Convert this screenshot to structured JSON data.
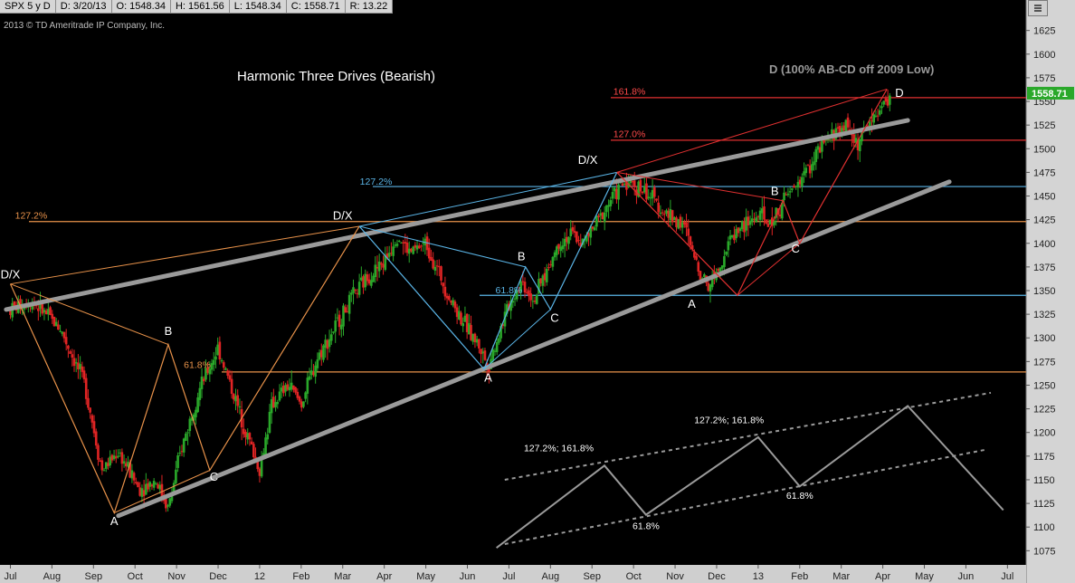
{
  "info_bar": {
    "symbol": "SPX 5 y D",
    "date": "D: 3/20/13",
    "open": "O: 1548.34",
    "high": "H: 1561.56",
    "low": "L: 1548.34",
    "close": "C: 1558.71",
    "range": "R: 13.22"
  },
  "copyright": "2013 © TD Ameritrade IP Company, Inc.",
  "chart_data": {
    "type": "line",
    "title": "Harmonic Three Drives (Bearish)",
    "subtitle": "D (100% AB-CD off 2009 Low)",
    "ylim": [
      1060,
      1640
    ],
    "y_ticks": [
      1075,
      1100,
      1125,
      1150,
      1175,
      1200,
      1225,
      1250,
      1275,
      1300,
      1325,
      1350,
      1375,
      1400,
      1425,
      1450,
      1475,
      1500,
      1525,
      1550,
      1575,
      1600,
      1625
    ],
    "x_ticks": [
      "Jul",
      "Aug",
      "Sep",
      "Oct",
      "Nov",
      "Dec",
      "12",
      "Feb",
      "Mar",
      "Apr",
      "May",
      "Jun",
      "Jul",
      "Aug",
      "Sep",
      "Oct",
      "Nov",
      "Dec",
      "13",
      "Feb",
      "Mar",
      "Apr",
      "May",
      "Jun",
      "Jul"
    ],
    "last_price": "1558.71",
    "price_anchors": [
      [
        0,
        1330
      ],
      [
        0.5,
        1340
      ],
      [
        1.2,
        1310
      ],
      [
        1.8,
        1250
      ],
      [
        2.2,
        1160
      ],
      [
        2.6,
        1180
      ],
      [
        3.1,
        1140
      ],
      [
        3.5,
        1150
      ],
      [
        3.8,
        1120
      ],
      [
        4.1,
        1180
      ],
      [
        4.5,
        1240
      ],
      [
        5.0,
        1290
      ],
      [
        5.3,
        1250
      ],
      [
        5.6,
        1210
      ],
      [
        6.0,
        1160
      ],
      [
        6.3,
        1230
      ],
      [
        6.7,
        1250
      ],
      [
        7.0,
        1230
      ],
      [
        7.4,
        1280
      ],
      [
        7.8,
        1310
      ],
      [
        8.2,
        1340
      ],
      [
        8.6,
        1365
      ],
      [
        9.0,
        1380
      ],
      [
        9.3,
        1410
      ],
      [
        9.6,
        1390
      ],
      [
        10.0,
        1400
      ],
      [
        10.3,
        1370
      ],
      [
        10.6,
        1340
      ],
      [
        11.0,
        1310
      ],
      [
        11.3,
        1290
      ],
      [
        11.5,
        1270
      ],
      [
        11.8,
        1310
      ],
      [
        12.0,
        1335
      ],
      [
        12.3,
        1360
      ],
      [
        12.6,
        1340
      ],
      [
        12.9,
        1370
      ],
      [
        13.2,
        1400
      ],
      [
        13.5,
        1410
      ],
      [
        13.8,
        1400
      ],
      [
        14.1,
        1420
      ],
      [
        14.5,
        1450
      ],
      [
        14.8,
        1465
      ],
      [
        15.1,
        1460
      ],
      [
        15.4,
        1450
      ],
      [
        15.8,
        1430
      ],
      [
        16.2,
        1420
      ],
      [
        16.5,
        1380
      ],
      [
        16.8,
        1355
      ],
      [
        17.1,
        1380
      ],
      [
        17.4,
        1410
      ],
      [
        17.7,
        1420
      ],
      [
        18.0,
        1430
      ],
      [
        18.3,
        1420
      ],
      [
        18.6,
        1445
      ],
      [
        18.9,
        1460
      ],
      [
        19.2,
        1480
      ],
      [
        19.5,
        1500
      ],
      [
        19.8,
        1515
      ],
      [
        20.1,
        1525
      ],
      [
        20.4,
        1505
      ],
      [
        20.7,
        1530
      ],
      [
        21.0,
        1545
      ],
      [
        21.2,
        1558
      ]
    ],
    "horizontal_levels": [
      {
        "value": 1554,
        "label": "161.8%",
        "color": "#e03030"
      },
      {
        "value": 1509,
        "label": "127.0%",
        "color": "#e03030"
      },
      {
        "value": 1460,
        "label": "127.2%",
        "color": "#5ab4e6"
      },
      {
        "value": 1345,
        "label": "61.8%",
        "color": "#5ab4e6"
      },
      {
        "value": 1423,
        "label": "127.2%",
        "color": "#e8924a"
      },
      {
        "value": 1264,
        "label": "61.8%",
        "color": "#e8924a"
      }
    ],
    "trend_lines": [
      {
        "from": [
          -0.1,
          1330
        ],
        "to": [
          21.6,
          1530
        ],
        "color": "#9a9a9a"
      },
      {
        "from": [
          2.6,
          1112
        ],
        "to": [
          22.6,
          1465
        ],
        "color": "#9a9a9a"
      }
    ],
    "harmonic_legs": [
      {
        "color": "#e8924a",
        "points": [
          [
            0,
            1357
          ],
          [
            2.5,
            1115
          ],
          [
            3.8,
            1293
          ],
          [
            4.8,
            1160
          ],
          [
            8.4,
            1418
          ]
        ]
      },
      {
        "color": "#5ab4e6",
        "points": [
          [
            8.4,
            1418
          ],
          [
            11.4,
            1267
          ],
          [
            12.4,
            1375
          ],
          [
            13.0,
            1330
          ],
          [
            14.6,
            1475
          ]
        ]
      },
      {
        "color": "#e03030",
        "points": [
          [
            14.6,
            1475
          ],
          [
            17.5,
            1345
          ],
          [
            18.6,
            1445
          ],
          [
            19.0,
            1400
          ],
          [
            21.1,
            1563
          ]
        ]
      }
    ],
    "pattern_labels": [
      {
        "text": "D/X",
        "x": 0,
        "y": 1363
      },
      {
        "text": "A",
        "x": 2.5,
        "y": 1102
      },
      {
        "text": "B",
        "x": 3.8,
        "y": 1303
      },
      {
        "text": "C",
        "x": 4.9,
        "y": 1149
      },
      {
        "text": "D/X",
        "x": 8.0,
        "y": 1425
      },
      {
        "text": "61.8%",
        "x": 4.5,
        "y": 1268
      },
      {
        "text": "127.2%",
        "x": 0.5,
        "y": 1426
      },
      {
        "text": "A",
        "x": 11.5,
        "y": 1254
      },
      {
        "text": "B",
        "x": 12.3,
        "y": 1382
      },
      {
        "text": "C",
        "x": 13.1,
        "y": 1317
      },
      {
        "text": "61.8%",
        "x": 12.0,
        "y": 1347
      },
      {
        "text": "127.2%",
        "x": 8.8,
        "y": 1462
      },
      {
        "text": "D/X",
        "x": 13.9,
        "y": 1484
      },
      {
        "text": "A",
        "x": 16.4,
        "y": 1332
      },
      {
        "text": "B",
        "x": 18.4,
        "y": 1451
      },
      {
        "text": "C",
        "x": 18.9,
        "y": 1390
      },
      {
        "text": "D",
        "x": 21.4,
        "y": 1555
      },
      {
        "text": "161.8%",
        "x": 14.9,
        "y": 1557
      },
      {
        "text": "127.0%",
        "x": 14.9,
        "y": 1512
      }
    ],
    "schematic": {
      "zigzag": [
        [
          11.7,
          1078
        ],
        [
          14.3,
          1165
        ],
        [
          15.3,
          1113
        ],
        [
          18.0,
          1195
        ],
        [
          19.0,
          1143
        ],
        [
          21.6,
          1228
        ],
        [
          23.9,
          1118
        ]
      ],
      "upper_channel": [
        [
          11.9,
          1150
        ],
        [
          23.6,
          1242
        ]
      ],
      "lower_channel": [
        [
          11.9,
          1082
        ],
        [
          23.5,
          1182
        ]
      ],
      "labels": [
        {
          "text": "127.2%; 161.8%",
          "x": 13.2,
          "y": 1180
        },
        {
          "text": "127.2%; 161.8%",
          "x": 17.3,
          "y": 1210
        },
        {
          "text": "61.8%",
          "x": 15.3,
          "y": 1098
        },
        {
          "text": "61.8%",
          "x": 19.0,
          "y": 1130
        }
      ]
    }
  }
}
